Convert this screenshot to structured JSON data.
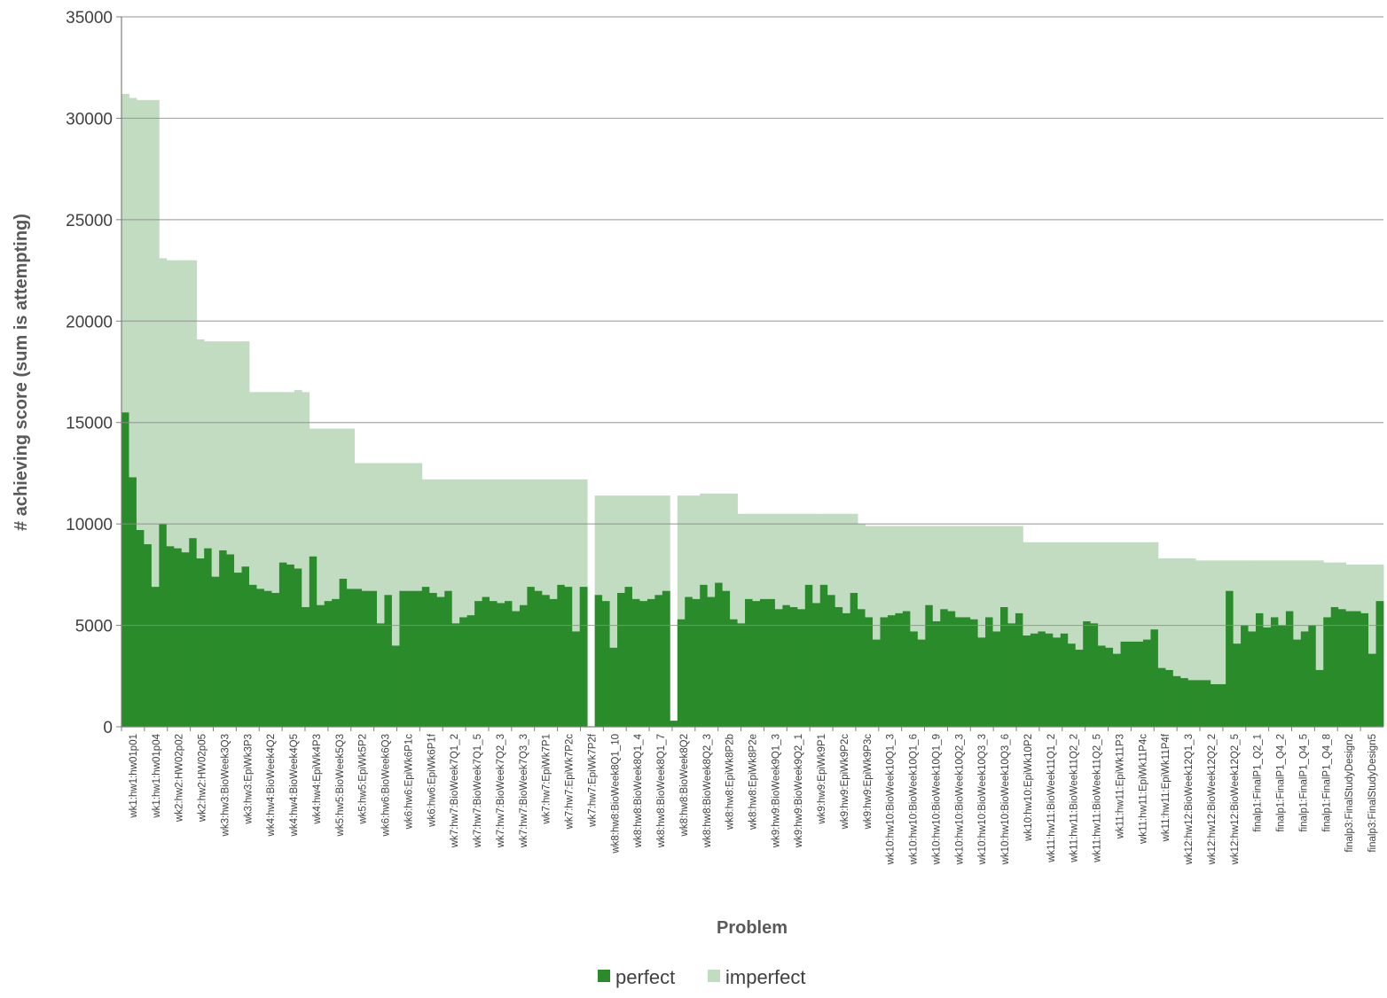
{
  "chart_data": {
    "type": "bar",
    "stacked": true,
    "xlabel": "Problem",
    "ylabel": "# achieving score (sum is attempting)",
    "ylim": [
      0,
      35000
    ],
    "yticks": [
      0,
      5000,
      10000,
      15000,
      20000,
      25000,
      30000,
      35000
    ],
    "grid": true,
    "legend_position": "bottom",
    "colors": {
      "perfect": "#2a8b2a",
      "imperfect": "#c2dcc2",
      "grid": "#8c8c8c",
      "axis": "#7f7f7f"
    },
    "series_names": [
      "perfect",
      "imperfect"
    ],
    "category_labels": [
      "wk1:hw1:hw01p01",
      "wk1:hw1:hw01p04",
      "wk2:hw2:HW02p02",
      "wk2:hw2:HW02p05",
      "wk3:hw3:BioWeek3Q3",
      "wk3:hw3:EpiWk3P3",
      "wk4:hw4:BioWeek4Q2",
      "wk4:hw4:BioWeek4Q5",
      "wk4:hw4:EpiWk4P3",
      "wk5:hw5:BioWeek5Q3",
      "wk5:hw5:EpiWk5P2",
      "wk6:hw6:BioWeek6Q3",
      "wk6:hw6:EpiWk6P1c",
      "wk6:hw6:EpiWk6P1f",
      "wk7:hw7:BioWeek7Q1_2",
      "wk7:hw7:BioWeek7Q1_5",
      "wk7:hw7:BioWeek7Q2_3",
      "wk7:hw7:BioWeek7Q3_3",
      "wk7:hw7:EpiWk7P1",
      "wk7:hw7:EpiWk7P2c",
      "wk7:hw7:EpiWk7P2f",
      "wk8:hw8:BioWeek8Q1_10",
      "wk8:hw8:BioWeek8Q1_4",
      "wk8:hw8:BioWeek8Q1_7",
      "wk8:hw8:BioWeek8Q2",
      "wk8:hw8:BioWeek8Q2_3",
      "wk8:hw8:EpiWk8P2b",
      "wk8:hw8:EpiWk8P2e",
      "wk9:hw9:BioWeek9Q1_3",
      "wk9:hw9:BioWeek9Q2_1",
      "wk9:hw9:EpiWk9P1",
      "wk9:hw9:EpiWk9P2c",
      "wk9:hw9:EpiWk9P3c",
      "wk10:hw10:BioWeek10Q1_3",
      "wk10:hw10:BioWeek10Q1_6",
      "wk10:hw10:BioWeek10Q1_9",
      "wk10:hw10:BioWeek10Q2_3",
      "wk10:hw10:BioWeek10Q3_3",
      "wk10:hw10:BioWeek10Q3_6",
      "wk10:hw10:EpiWk10P2",
      "wk11:hw11:BioWeek11Q1_2",
      "wk11:hw11:BioWeek11Q2_2",
      "wk11:hw11:BioWeek11Q2_5",
      "wk11:hw11:EpiWk11P3",
      "wk11:hw11:EpiWk11P4c",
      "wk11:hw11:EpiWk11P4f",
      "wk12:hw12:BioWeek12Q1_3",
      "wk12:hw12:BioWeek12Q2_2",
      "wk12:hw12:BioWeek12Q2_5",
      "finalp1:FinalP1_Q2_1",
      "finalp1:FinalP1_Q4_2",
      "finalp1:FinalP1_Q4_5",
      "finalp1:FinalP1_Q4_8",
      "finalp3:FinalStudyDesign2",
      "finalp3:FinalStudyDesign5"
    ],
    "perfect": [
      15500,
      12300,
      9700,
      9000,
      6900,
      10000,
      8900,
      8800,
      8600,
      9300,
      8300,
      8800,
      7400,
      8700,
      8500,
      7600,
      7900,
      7000,
      6800,
      6700,
      6600,
      8100,
      8000,
      7800,
      5900,
      8400,
      6000,
      6200,
      6300,
      7300,
      6800,
      6800,
      6700,
      6700,
      5100,
      6500,
      4000,
      6700,
      6700,
      6700,
      6900,
      6600,
      6400,
      6700,
      5100,
      5400,
      5500,
      6200,
      6400,
      6200,
      6100,
      6200,
      5700,
      6000,
      6900,
      6700,
      6500,
      6300,
      7000,
      6900,
      4700,
      6900,
      0,
      6500,
      6200,
      3900,
      6600,
      6900,
      6300,
      6200,
      6300,
      6500,
      6700,
      300,
      5300,
      6400,
      6300,
      7000,
      6400,
      7100,
      6700,
      5300,
      5100,
      6300,
      6200,
      6300,
      6300,
      5800,
      6000,
      5900,
      5800,
      7000,
      6100,
      7000,
      6500,
      5900,
      5600,
      6600,
      5800,
      5400,
      4300,
      5400,
      5500,
      5600,
      5700,
      4700,
      4300,
      6000,
      5200,
      5800,
      5700,
      5400,
      5400,
      5300,
      4400,
      5400,
      4700,
      5900,
      5100,
      5600,
      4500,
      4600,
      4700,
      4600,
      4400,
      4600,
      4100,
      3800,
      5200,
      5100,
      4000,
      3900,
      3600,
      4200,
      4200,
      4200,
      4300,
      4800,
      2900,
      2800,
      2500,
      2400,
      2300,
      2300,
      2300,
      2100,
      2100,
      6700,
      4100,
      5000,
      4700,
      5600,
      4900,
      5400,
      5000,
      5700,
      4300,
      4700,
      5000,
      2800,
      5400,
      5900,
      5800,
      5700,
      5700,
      5600,
      3600,
      6200
    ],
    "total": [
      31200,
      31000,
      30900,
      30900,
      30900,
      23100,
      23000,
      23000,
      23000,
      23000,
      19100,
      19000,
      19000,
      19000,
      19000,
      19000,
      19000,
      16500,
      16500,
      16500,
      16500,
      16500,
      16500,
      16600,
      16500,
      14700,
      14700,
      14700,
      14700,
      14700,
      14700,
      13000,
      13000,
      13000,
      13000,
      13000,
      13000,
      13000,
      13000,
      13000,
      12200,
      12200,
      12200,
      12200,
      12200,
      12200,
      12200,
      12200,
      12200,
      12200,
      12200,
      12200,
      12200,
      12200,
      12200,
      12200,
      12200,
      12200,
      12200,
      12200,
      12200,
      12200,
      0,
      11400,
      11400,
      11400,
      11400,
      11400,
      11400,
      11400,
      11400,
      11400,
      11400,
      0,
      11400,
      11400,
      11400,
      11500,
      11500,
      11500,
      11500,
      11500,
      10500,
      10500,
      10500,
      10500,
      10500,
      10500,
      10500,
      10500,
      10500,
      10500,
      10500,
      10500,
      10500,
      10500,
      10500,
      10500,
      10000,
      9900,
      9900,
      9900,
      9900,
      9900,
      9900,
      9900,
      9900,
      9900,
      9900,
      9900,
      9900,
      9900,
      9900,
      9900,
      9900,
      9900,
      9900,
      9900,
      9900,
      9900,
      9100,
      9100,
      9100,
      9100,
      9100,
      9100,
      9100,
      9100,
      9100,
      9100,
      9100,
      9100,
      9100,
      9100,
      9100,
      9100,
      9100,
      9100,
      8300,
      8300,
      8300,
      8300,
      8300,
      8200,
      8200,
      8200,
      8200,
      8200,
      8200,
      8200,
      8200,
      8200,
      8200,
      8200,
      8200,
      8200,
      8200,
      8200,
      8200,
      8200,
      8100,
      8100,
      8100,
      8000,
      8000,
      8000,
      8000,
      8000,
      8000,
      8000
    ]
  },
  "legend": {
    "perfect_label": "perfect",
    "imperfect_label": "imperfect"
  }
}
